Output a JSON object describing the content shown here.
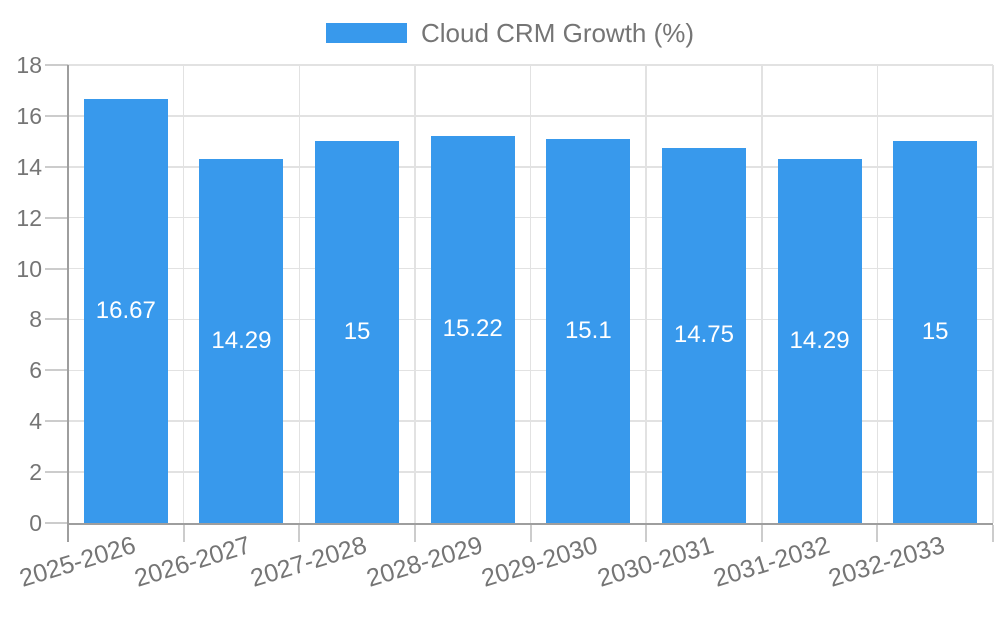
{
  "legend": {
    "label": "Cloud CRM Growth (%)"
  },
  "chart_data": {
    "type": "bar",
    "title": "",
    "xlabel": "",
    "ylabel": "",
    "legend_label": "Cloud CRM Growth (%)",
    "legend_position": "top-center",
    "grid": true,
    "categories": [
      "2025-2026",
      "2026-2027",
      "2027-2028",
      "2028-2029",
      "2029-2030",
      "2030-2031",
      "2031-2032",
      "2032-2033"
    ],
    "values": [
      16.67,
      14.29,
      15,
      15.22,
      15.1,
      14.75,
      14.29,
      15
    ],
    "value_labels": [
      "16.67",
      "14.29",
      "15",
      "15.22",
      "15.1",
      "14.75",
      "14.29",
      "15"
    ],
    "ylim": [
      0,
      18
    ],
    "ytick_step": 2,
    "ytick_labels": [
      "0",
      "2",
      "4",
      "6",
      "8",
      "10",
      "12",
      "14",
      "16",
      "18"
    ],
    "colors": {
      "bar": "#3899EC",
      "axis": "#9e9e9e",
      "grid": "#e2e2e2",
      "tick": "#cccccc",
      "text": "#757575",
      "bar_label": "#ffffff",
      "background": "#ffffff"
    }
  }
}
